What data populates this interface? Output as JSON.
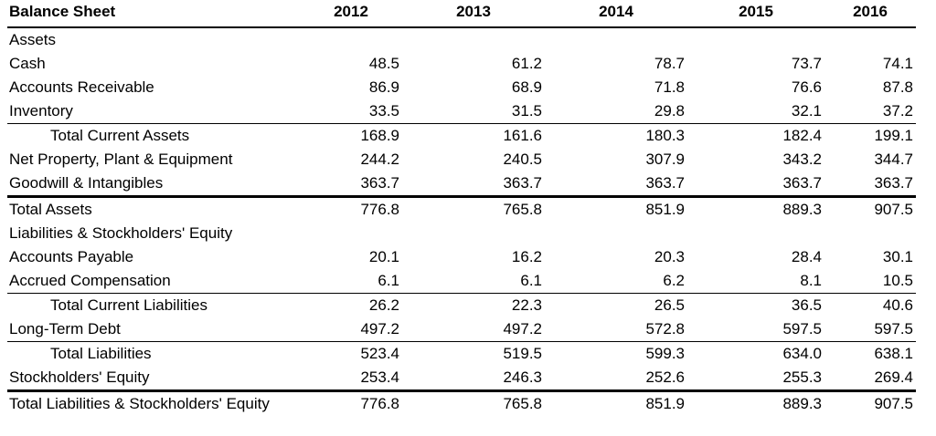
{
  "page": {
    "background_color": "#ffffff",
    "text_color": "#000000",
    "rule_color": "#000000"
  },
  "table": {
    "title": "Balance Sheet",
    "years": [
      "2012",
      "2013",
      "2014",
      "2015",
      "2016"
    ],
    "rows": [
      {
        "label": "Assets",
        "type": "section",
        "indent": false,
        "border_top": "none",
        "values": [
          "",
          "",
          "",
          "",
          ""
        ]
      },
      {
        "label": "Cash",
        "type": "item",
        "indent": false,
        "border_top": "none",
        "values": [
          "48.5",
          "61.2",
          "78.7",
          "73.7",
          "74.1"
        ]
      },
      {
        "label": "Accounts Receivable",
        "type": "item",
        "indent": false,
        "border_top": "none",
        "values": [
          "86.9",
          "68.9",
          "71.8",
          "76.6",
          "87.8"
        ]
      },
      {
        "label": "Inventory",
        "type": "item",
        "indent": false,
        "border_top": "none",
        "values": [
          "33.5",
          "31.5",
          "29.8",
          "32.1",
          "37.2"
        ]
      },
      {
        "label": "Total Current Assets",
        "type": "subtotal",
        "indent": true,
        "border_top": "thin",
        "values": [
          "168.9",
          "161.6",
          "180.3",
          "182.4",
          "199.1"
        ]
      },
      {
        "label": "Net Property, Plant & Equipment",
        "type": "item",
        "indent": false,
        "border_top": "none",
        "values": [
          "244.2",
          "240.5",
          "307.9",
          "343.2",
          "344.7"
        ]
      },
      {
        "label": "Goodwill & Intangibles",
        "type": "item",
        "indent": false,
        "border_top": "none",
        "values": [
          "363.7",
          "363.7",
          "363.7",
          "363.7",
          "363.7"
        ]
      },
      {
        "label": "Total Assets",
        "type": "total",
        "indent": false,
        "border_top": "thick",
        "values": [
          "776.8",
          "765.8",
          "851.9",
          "889.3",
          "907.5"
        ]
      },
      {
        "label": "Liabilities & Stockholders' Equity",
        "type": "section",
        "indent": false,
        "border_top": "none",
        "values": [
          "",
          "",
          "",
          "",
          ""
        ]
      },
      {
        "label": "Accounts Payable",
        "type": "item",
        "indent": false,
        "border_top": "none",
        "values": [
          "20.1",
          "16.2",
          "20.3",
          "28.4",
          "30.1"
        ]
      },
      {
        "label": "Accrued Compensation",
        "type": "item",
        "indent": false,
        "border_top": "none",
        "values": [
          "6.1",
          "6.1",
          "6.2",
          "8.1",
          "10.5"
        ]
      },
      {
        "label": "Total Current Liabilities",
        "type": "subtotal",
        "indent": true,
        "border_top": "thin",
        "values": [
          "26.2",
          "22.3",
          "26.5",
          "36.5",
          "40.6"
        ]
      },
      {
        "label": "Long-Term Debt",
        "type": "item",
        "indent": false,
        "border_top": "none",
        "values": [
          "497.2",
          "497.2",
          "572.8",
          "597.5",
          "597.5"
        ]
      },
      {
        "label": "Total Liabilities",
        "type": "subtotal",
        "indent": true,
        "border_top": "thin",
        "values": [
          "523.4",
          "519.5",
          "599.3",
          "634.0",
          "638.1"
        ]
      },
      {
        "label": "Stockholders' Equity",
        "type": "item",
        "indent": false,
        "border_top": "none",
        "values": [
          "253.4",
          "246.3",
          "252.6",
          "255.3",
          "269.4"
        ]
      },
      {
        "label": "Total Liabilities & Stockholders' Equity",
        "type": "total",
        "indent": false,
        "border_top": "thick",
        "values": [
          "776.8",
          "765.8",
          "851.9",
          "889.3",
          "907.5"
        ]
      }
    ]
  }
}
